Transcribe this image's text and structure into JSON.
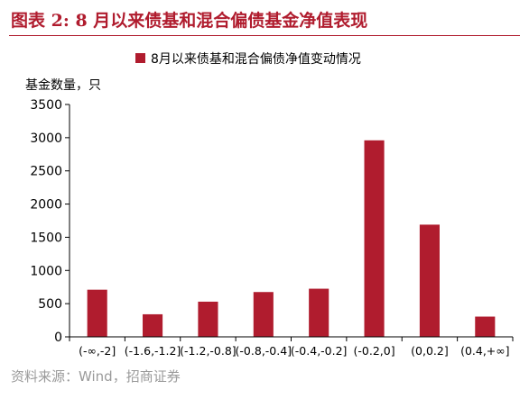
{
  "figure_title": "图表 2:  8 月以来债基和混合偏债基金净值表现",
  "source_note": "资料来源：Wind，招商证券",
  "chart_data": {
    "type": "bar",
    "title": "",
    "ylabel": "基金数量，只",
    "xlabel": "",
    "categories": [
      "(-∞,-2]",
      "(-1.6,-1.2]",
      "(-1.2,-0.8]",
      "(-0.8,-0.4]",
      "(-0.4,-0.2]",
      "(-0.2,0]",
      "(0,0.2]",
      "(0.4,+∞]"
    ],
    "series": [
      {
        "name": "8月以来债基和混合偏债净值变动情况",
        "color": "#b01c2e",
        "values": [
          710,
          340,
          530,
          675,
          725,
          2960,
          1690,
          305
        ]
      }
    ],
    "ylim": [
      0,
      3500
    ],
    "yticks": [
      0,
      500,
      1000,
      1500,
      2000,
      2500,
      3000,
      3500
    ],
    "grid": false,
    "legend_position": "top"
  }
}
